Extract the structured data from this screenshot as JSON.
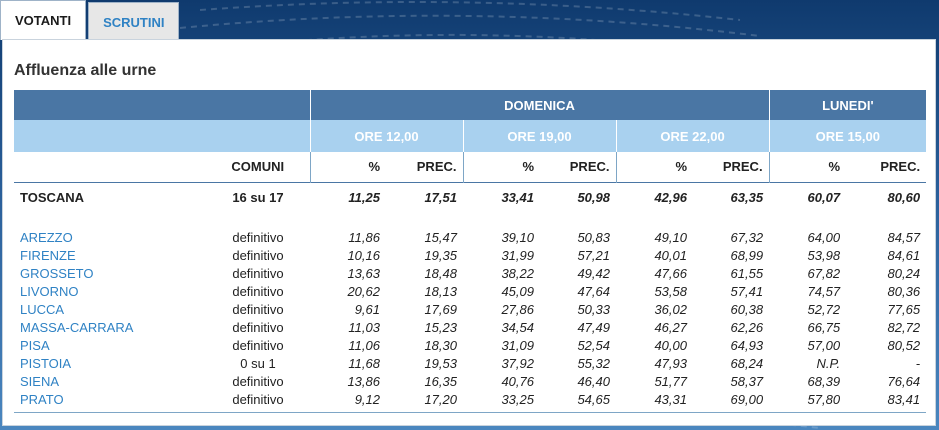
{
  "tabs": [
    {
      "label": "VOTANTI",
      "active": true
    },
    {
      "label": "SCRUTINI",
      "active": false
    }
  ],
  "title": "Affluenza alle urne",
  "headers": {
    "days": [
      "DOMENICA",
      "LUNEDI'"
    ],
    "times": [
      "ORE 12,00",
      "ORE 19,00",
      "ORE 22,00",
      "ORE 15,00"
    ],
    "comuni": "COMUNI",
    "pct": "%",
    "prec": "PREC."
  },
  "total": {
    "name": "TOSCANA",
    "comuni": "16 su 17",
    "values": [
      "11,25",
      "17,51",
      "33,41",
      "50,98",
      "42,96",
      "63,35",
      "60,07",
      "80,60"
    ]
  },
  "provinces": [
    {
      "name": "AREZZO",
      "comuni": "definitivo",
      "values": [
        "11,86",
        "15,47",
        "39,10",
        "50,83",
        "49,10",
        "67,32",
        "64,00",
        "84,57"
      ]
    },
    {
      "name": "FIRENZE",
      "comuni": "definitivo",
      "values": [
        "10,16",
        "19,35",
        "31,99",
        "57,21",
        "40,01",
        "68,99",
        "53,98",
        "84,61"
      ]
    },
    {
      "name": "GROSSETO",
      "comuni": "definitivo",
      "values": [
        "13,63",
        "18,48",
        "38,22",
        "49,42",
        "47,66",
        "61,55",
        "67,82",
        "80,24"
      ]
    },
    {
      "name": "LIVORNO",
      "comuni": "definitivo",
      "values": [
        "20,62",
        "18,13",
        "45,09",
        "47,64",
        "53,58",
        "57,41",
        "74,57",
        "80,36"
      ]
    },
    {
      "name": "LUCCA",
      "comuni": "definitivo",
      "values": [
        "9,61",
        "17,69",
        "27,86",
        "50,33",
        "36,02",
        "60,38",
        "52,72",
        "77,65"
      ]
    },
    {
      "name": "MASSA-CARRARA",
      "comuni": "definitivo",
      "values": [
        "11,03",
        "15,23",
        "34,54",
        "47,49",
        "46,27",
        "62,26",
        "66,75",
        "82,72"
      ]
    },
    {
      "name": "PISA",
      "comuni": "definitivo",
      "values": [
        "11,06",
        "18,30",
        "31,09",
        "52,54",
        "40,00",
        "64,93",
        "57,00",
        "80,52"
      ]
    },
    {
      "name": "PISTOIA",
      "comuni": "0 su 1",
      "values": [
        "11,68",
        "19,53",
        "37,92",
        "55,32",
        "47,93",
        "68,24",
        "N.P.",
        "-"
      ]
    },
    {
      "name": "SIENA",
      "comuni": "definitivo",
      "values": [
        "13,86",
        "16,35",
        "40,76",
        "46,40",
        "51,77",
        "58,37",
        "68,39",
        "76,64"
      ]
    },
    {
      "name": "PRATO",
      "comuni": "definitivo",
      "values": [
        "9,12",
        "17,20",
        "33,25",
        "54,65",
        "43,31",
        "69,00",
        "57,80",
        "83,41"
      ]
    }
  ],
  "colors": {
    "header_dark": "#4a76a4",
    "header_light": "#a9d1ef",
    "link": "#2f82c4"
  }
}
